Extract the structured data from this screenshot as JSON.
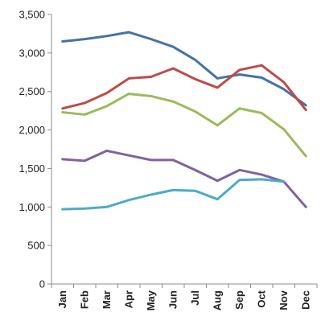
{
  "chart_data": {
    "type": "line",
    "title": "",
    "xlabel": "",
    "ylabel": "",
    "categories": [
      "Jan",
      "Feb",
      "Mar",
      "Apr",
      "May",
      "Jun",
      "Jul",
      "Aug",
      "Sep",
      "Oct",
      "Nov",
      "Dec"
    ],
    "ylim": [
      0,
      3500
    ],
    "yticks": [
      0,
      500,
      1000,
      1500,
      2000,
      2500,
      3000,
      3500
    ],
    "ytick_labels": [
      "0",
      "500",
      "1,000",
      "1,500",
      "2,000",
      "2,500",
      "3,000",
      "3,500"
    ],
    "grid": false,
    "legend": "none",
    "series": [
      {
        "color": "#4472A8",
        "values": [
          3150,
          3180,
          3220,
          3270,
          3180,
          3080,
          2910,
          2670,
          2720,
          2680,
          2530,
          2320
        ]
      },
      {
        "color": "#BE4B48",
        "values": [
          2280,
          2350,
          2480,
          2670,
          2690,
          2800,
          2660,
          2550,
          2780,
          2840,
          2620,
          2260
        ]
      },
      {
        "color": "#9BBB59",
        "values": [
          2230,
          2200,
          2310,
          2470,
          2440,
          2370,
          2240,
          2060,
          2280,
          2220,
          2010,
          1660
        ]
      },
      {
        "color": "#7E62A3",
        "values": [
          1620,
          1600,
          1730,
          1670,
          1610,
          1610,
          1480,
          1340,
          1480,
          1420,
          1330,
          1000
        ]
      },
      {
        "color": "#4BACC6",
        "values": [
          970,
          980,
          1000,
          1090,
          1160,
          1220,
          1210,
          1100,
          1350,
          1360,
          1330,
          null
        ]
      }
    ]
  }
}
